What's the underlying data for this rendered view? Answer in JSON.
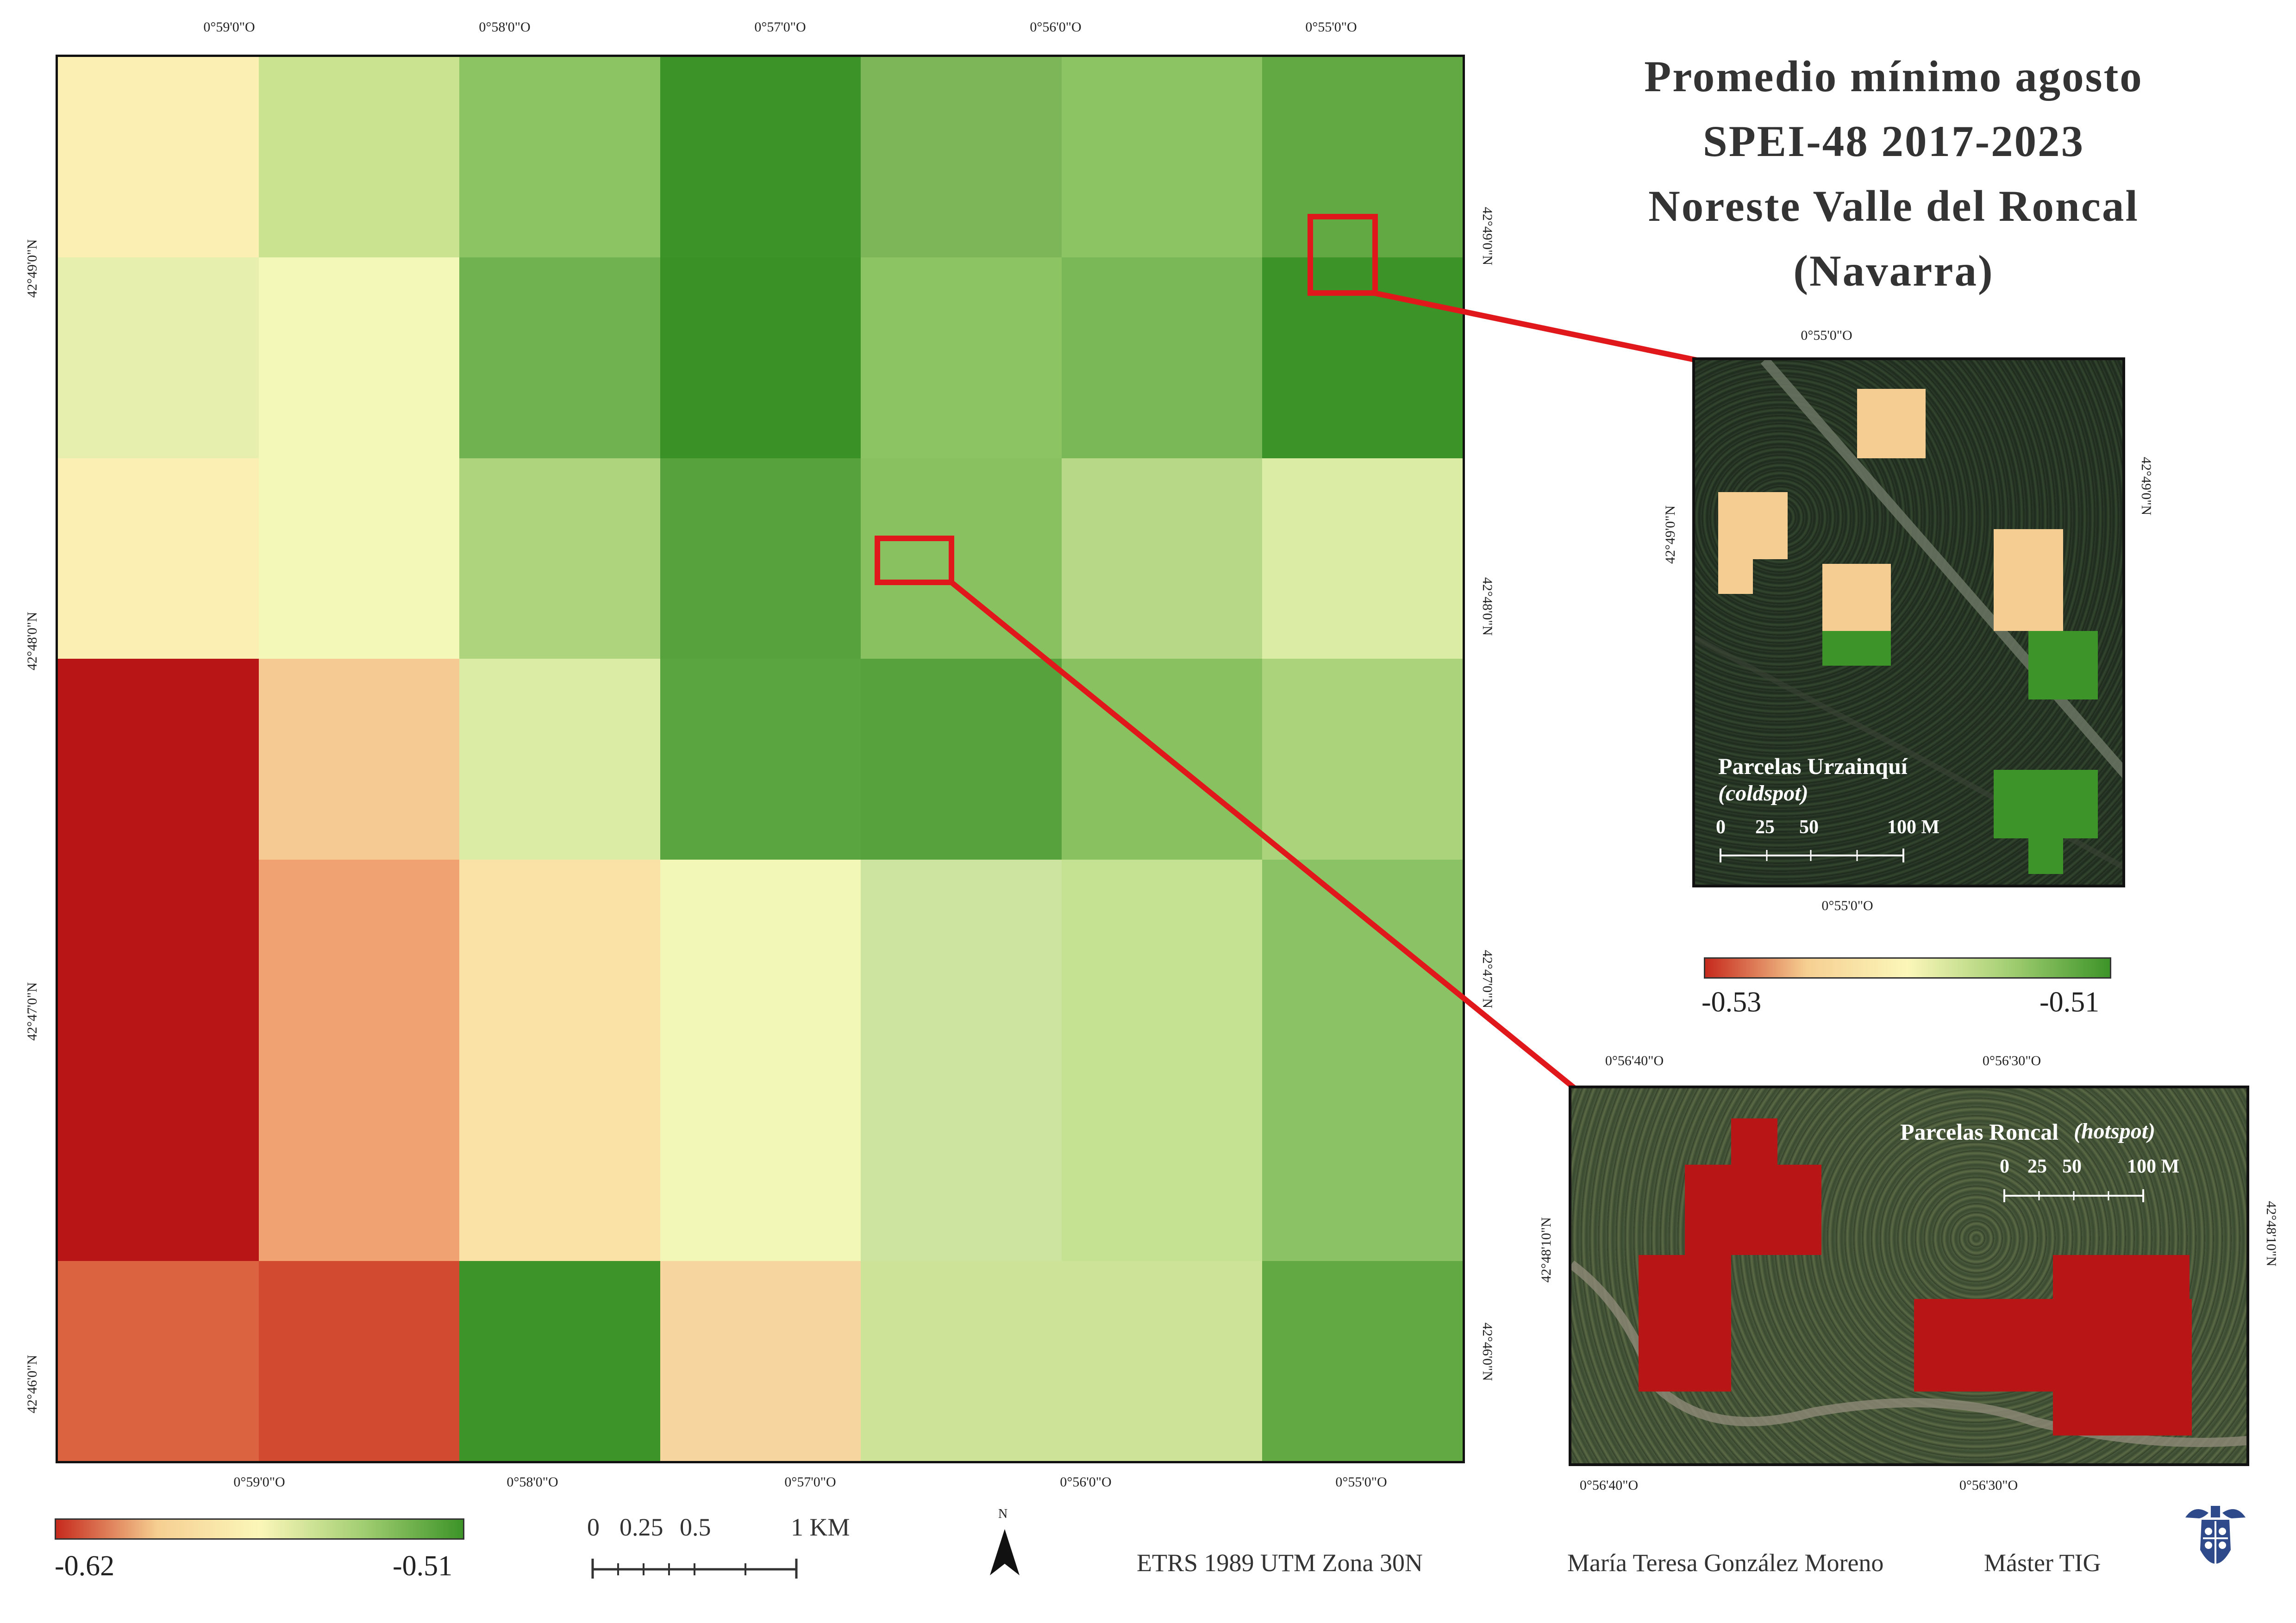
{
  "title": {
    "line1": "Promedio mínimo agosto",
    "line2": "SPEI-48 2017-2023",
    "line3": "Noreste Valle del Roncal",
    "line4": "(Navarra)"
  },
  "main_map": {
    "top_ticks": [
      "0°59'0\"O",
      "0°58'0\"O",
      "0°57'0\"O",
      "0°56'0\"O",
      "0°55'0\"O"
    ],
    "bottom_ticks": [
      "0°59'0\"O",
      "0°58'0\"O",
      "0°57'0\"O",
      "0°56'0\"O",
      "0°55'0\"O"
    ],
    "left_ticks": [
      "42°49'0\"N",
      "42°48'0\"N",
      "42°47'0\"N",
      "42°46'0\"N"
    ],
    "right_ticks": [
      "42°49'0\"N",
      "42°48'0\"N",
      "42°47'0\"N",
      "42°46'0\"N"
    ],
    "grid_colors": [
      [
        "#fbefb4",
        "#c9e391",
        "#8cc363",
        "#3c9428",
        "#7db659",
        "#8cc363",
        "#62a843"
      ],
      [
        "#e6efae",
        "#f3f8b8",
        "#6fb24f",
        "#3a9125",
        "#8cc363",
        "#7ab756",
        "#3c9428"
      ],
      [
        "#fbefb4",
        "#f3f8b8",
        "#aed57e",
        "#57a23d",
        "#89c160",
        "#b7d987",
        "#dbeca4"
      ],
      [
        "#b81616",
        "#f6cb93",
        "#dbeca4",
        "#5aa53f",
        "#57a23d",
        "#89c160",
        "#aad37c"
      ],
      [
        "#b81616",
        "#f0a272",
        "#fae2a6",
        "#f2f7b8",
        "#cde4a0",
        "#c5e192",
        "#8bc266"
      ],
      [
        "#b81616",
        "#f0a272",
        "#fae2a6",
        "#f2f7b8",
        "#cde4a0",
        "#c5e192",
        "#8bc266"
      ],
      [
        "#db6340",
        "#d24b30",
        "#3d9428",
        "#f7d59f",
        "#cde397",
        "#cde397",
        "#62a843"
      ]
    ]
  },
  "legend_main": {
    "min": "-0.62",
    "max": "-0.51",
    "colors": [
      "#c62a1d",
      "#f6cf92",
      "#fbf7b9",
      "#a3cf73",
      "#3d9428"
    ]
  },
  "legend_inset": {
    "min": "-0.53",
    "max": "-0.51"
  },
  "scalebar_main": {
    "labels": [
      "0",
      "0.25",
      "0.5",
      "1 KM"
    ]
  },
  "north_arrow": {
    "label": "N"
  },
  "inset_coldspot": {
    "title": "Parcelas Urzainquí",
    "subtitle": "(coldspot)",
    "scale": [
      "0",
      "25",
      "50",
      "100 M"
    ],
    "top_tick": "0°55'0\"O",
    "bottom_tick": "0°55'0\"O",
    "left_tick": "42°49'0\"N",
    "right_tick": "42°49'0\"N",
    "fill_beige": "#f5cc92",
    "fill_green": "#3d9428"
  },
  "inset_hotspot": {
    "title": "Parcelas Roncal",
    "subtitle": "(hotspot)",
    "scale": [
      "0",
      "25",
      "50",
      "100 M"
    ],
    "top_ticks": [
      "0°56'40\"O",
      "0°56'30\"O"
    ],
    "bottom_ticks": [
      "0°56'40\"O",
      "0°56'30\"O"
    ],
    "left_tick": "42°48'10\"N",
    "right_tick": "42°48'10\"N",
    "fill_red": "#b81616"
  },
  "footer": {
    "projection": "ETRS 1989 UTM Zona 30N",
    "author": "María Teresa González Moreno",
    "program": "Máster TIG"
  },
  "logo": {
    "icon": "university-crest-icon"
  },
  "accent": {
    "highlight_red": "#e0181b"
  }
}
